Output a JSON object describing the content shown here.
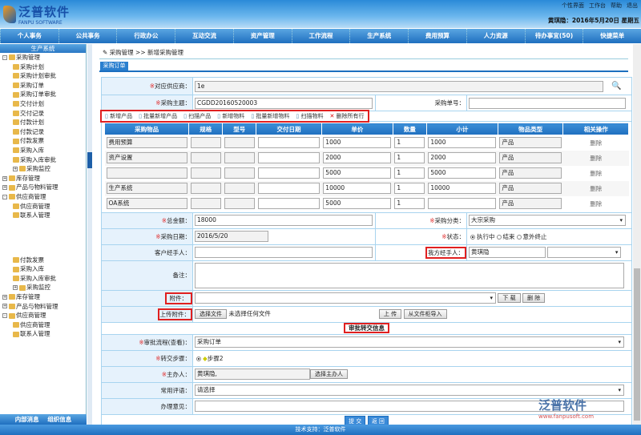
{
  "header": {
    "brand": "泛普软件",
    "brand_en": "FANPU SOFTWARE",
    "links": [
      "个性界面",
      "工作台",
      "帮助",
      "退出"
    ],
    "user_date": "黄琪隐：2016年5月20日 星期五"
  },
  "nav": [
    "个人事务",
    "公共事务",
    "行政办公",
    "互动交流",
    "资产管理",
    "工作流程",
    "生产系统",
    "费用预算",
    "人力资源",
    "待办事宜(50)",
    "快捷菜单"
  ],
  "sidebar": {
    "title": "生产系统",
    "tree": [
      {
        "label": "采购管理",
        "level": 0,
        "toggle": "-"
      },
      {
        "label": "采购计划",
        "level": 1
      },
      {
        "label": "采购计划审批",
        "level": 1
      },
      {
        "label": "采购订单",
        "level": 1
      },
      {
        "label": "采购订单审批",
        "level": 1
      },
      {
        "label": "交付计划",
        "level": 1
      },
      {
        "label": "交付记录",
        "level": 1
      },
      {
        "label": "付款计划",
        "level": 1
      },
      {
        "label": "付款记录",
        "level": 1
      },
      {
        "label": "付款发票",
        "level": 1
      },
      {
        "label": "采购入库",
        "level": 1
      },
      {
        "label": "采购入库审批",
        "level": 1
      },
      {
        "label": "采购监控",
        "level": 1,
        "toggle": "+"
      },
      {
        "label": "库存管理",
        "level": 0,
        "toggle": "+"
      },
      {
        "label": "产品与物料管理",
        "level": 0,
        "toggle": "+"
      },
      {
        "label": "供应商管理",
        "level": 0,
        "toggle": "-"
      },
      {
        "label": "供应商管理",
        "level": 1
      },
      {
        "label": "联系人管理",
        "level": 1
      }
    ],
    "tree2": [
      {
        "label": "付款发票",
        "level": 1
      },
      {
        "label": "采购入库",
        "level": 1
      },
      {
        "label": "采购入库审批",
        "level": 1
      },
      {
        "label": "采购监控",
        "level": 1,
        "toggle": "+"
      },
      {
        "label": "库存管理",
        "level": 0,
        "toggle": "+"
      },
      {
        "label": "产品与物料管理",
        "level": 0,
        "toggle": "+"
      },
      {
        "label": "供应商管理",
        "level": 0,
        "toggle": "-"
      },
      {
        "label": "供应商管理",
        "level": 1
      },
      {
        "label": "联系人管理",
        "level": 1
      }
    ],
    "bottom": [
      "内部消息",
      "组织信息"
    ]
  },
  "breadcrumb": "采购管理 >> 新增采购管理",
  "tab": "采购订单",
  "form": {
    "supplier_label": "对应供应商：",
    "supplier": "1e",
    "subject_label": "采购主题：",
    "subject": "CGDD20160520003",
    "number_label": "采购单号：",
    "number": "",
    "toolbar": [
      "新增产品",
      "批量新增产品",
      "扫描产品",
      "新增物料",
      "批量新增物料",
      "扫描物料",
      "删除所有行"
    ],
    "columns": [
      "采购物品",
      "规格",
      "型号",
      "交付日期",
      "单价",
      "数量",
      "小计",
      "物品类型",
      "相关操作"
    ],
    "rows": [
      [
        "费用预算",
        "",
        "",
        "",
        "1000",
        "1",
        "1000",
        "产品",
        "删除"
      ],
      [
        "资产设置",
        "",
        "",
        "",
        "2000",
        "1",
        "2000",
        "产品",
        "删除"
      ],
      [
        "",
        "",
        "",
        "",
        "5000",
        "1",
        "5000",
        "产品",
        "删除"
      ],
      [
        "生产系统",
        "",
        "",
        "",
        "10000",
        "1",
        "10000",
        "产品",
        "删除"
      ],
      [
        "OA系统",
        "",
        "",
        "",
        "5000",
        "1",
        "",
        "产品",
        "删除"
      ]
    ],
    "total_label": "总金额：",
    "total": "18000",
    "category_label": "采购分类：",
    "category": "大宗采购",
    "date_label": "采购日期：",
    "date": "2016/5/20",
    "status_label": "状态：",
    "status_options": [
      "执行中",
      "结束",
      "意外终止"
    ],
    "status_selected": "执行中",
    "client_handler_label": "客户经手人：",
    "client_handler": "",
    "our_handler_label": "我方经手人：",
    "our_handler": "黄琪隐",
    "remark_label": "备注：",
    "attach_label": "附件：",
    "download": "下 载",
    "delete": "删 除",
    "upload_label": "上传附件：",
    "choose_file": "选择文件",
    "no_file": "未选择任何文件",
    "upload": "上 传",
    "import": "从文件柜导入",
    "approval_header": "审批转交信息",
    "process_label": "审批流程(查看)：",
    "process": "采购订单",
    "step_label": "转交步骤：",
    "step": "步骤2",
    "host_label": "主办人：",
    "host": "黄琪隐,",
    "choose_host": "选择主办人",
    "phrase_label": "常用评语：",
    "phrase": "请选择",
    "opinion_label": "办理意见：",
    "submit": "提 交",
    "back": "返 回"
  },
  "footer": "技术支持：泛普软件",
  "watermark": {
    "brand": "泛普软件",
    "url": "www.fanpusoft.com"
  }
}
